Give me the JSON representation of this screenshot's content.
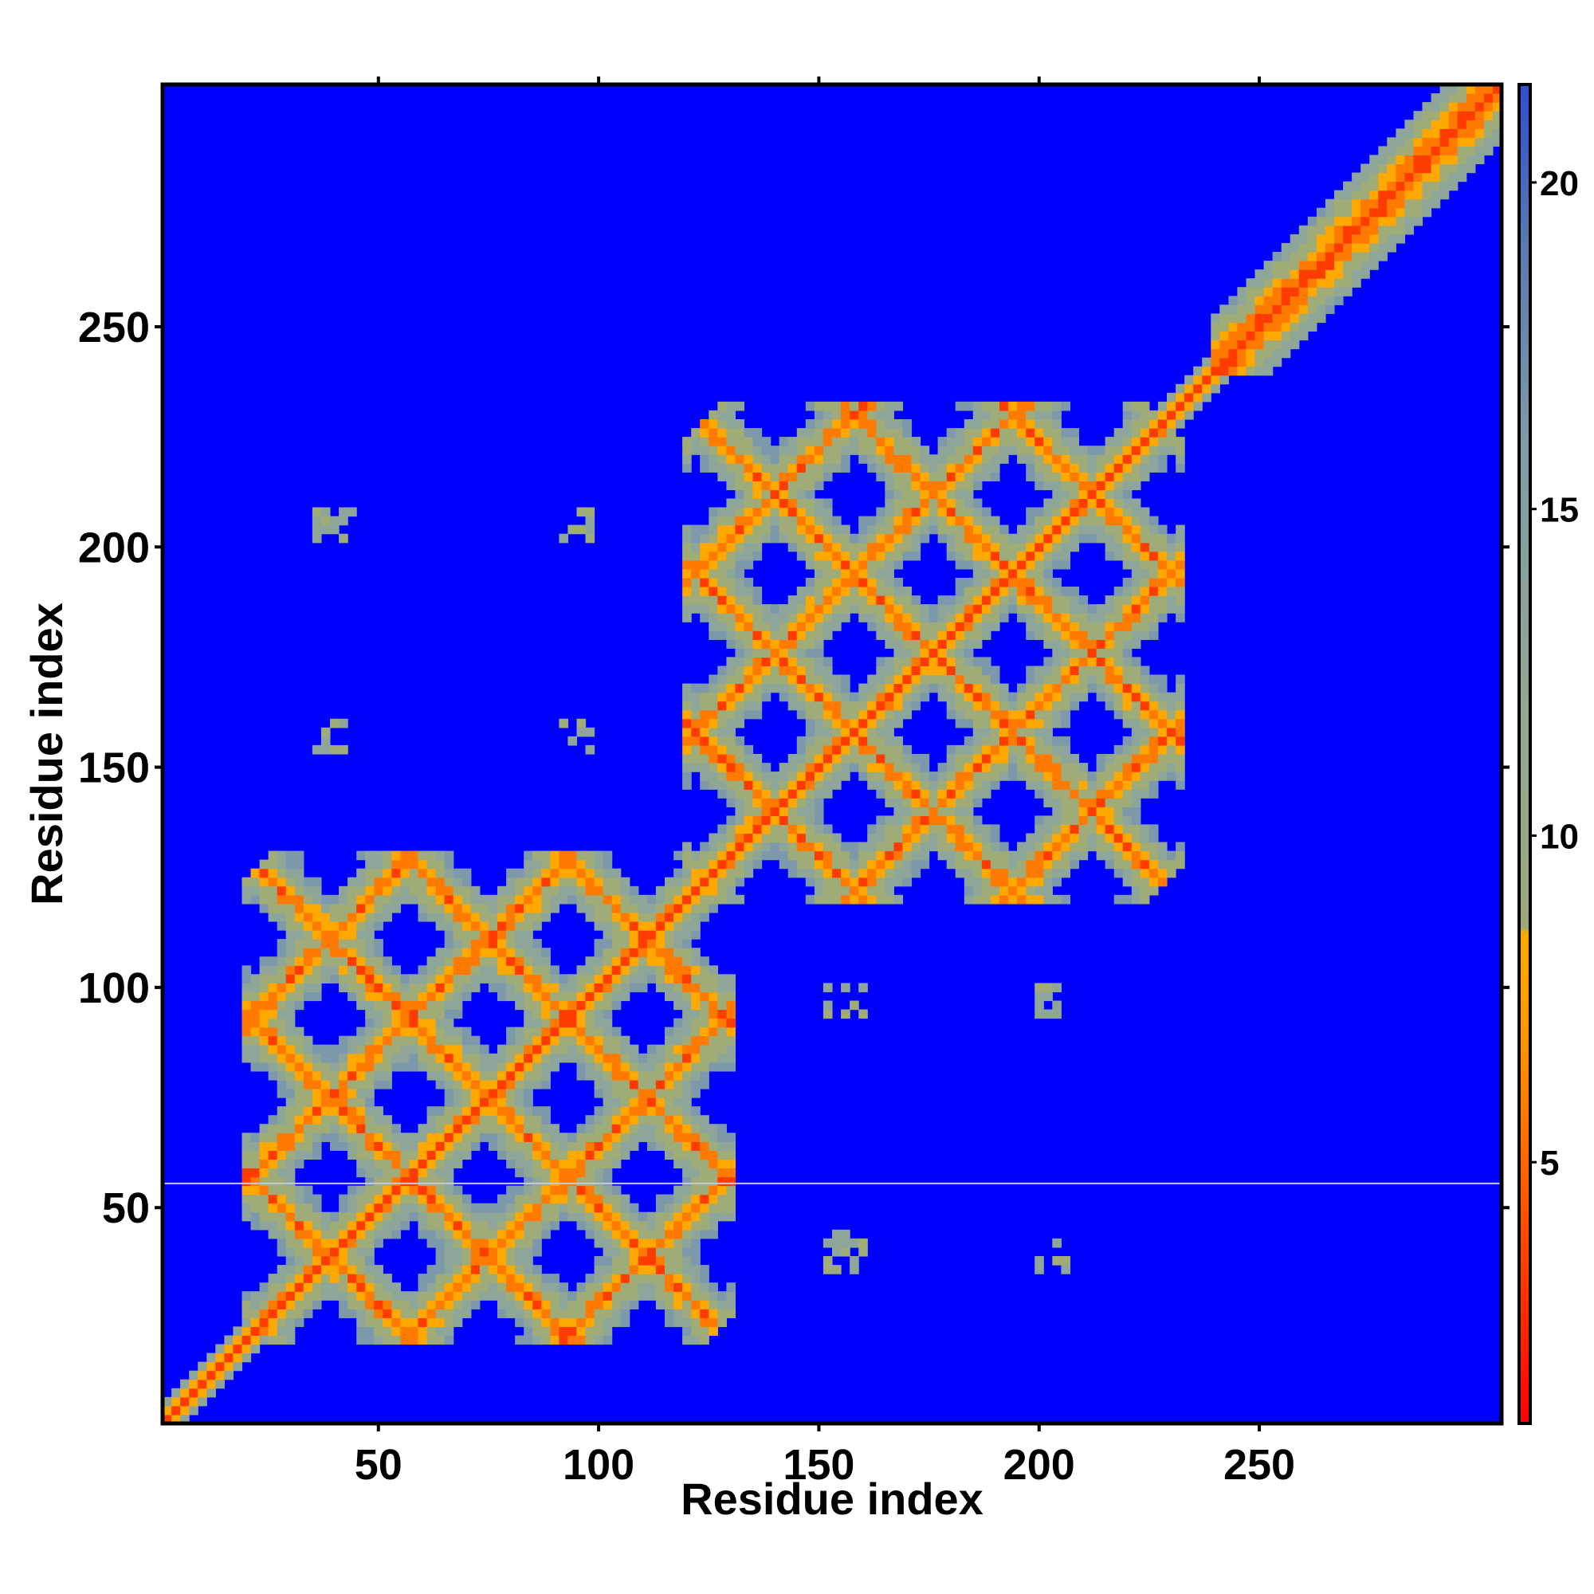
{
  "chart_data": {
    "type": "heatmap",
    "title": "",
    "xlabel": "Residue index",
    "ylabel": "Residue index",
    "xlim": [
      1,
      305
    ],
    "ylim": [
      1,
      305
    ],
    "xticks": [
      50,
      100,
      150,
      200,
      250
    ],
    "yticks": [
      50,
      100,
      150,
      200,
      250
    ],
    "colorbar": {
      "ticks": [
        5,
        10,
        15,
        20
      ],
      "range": [
        1,
        21.5
      ],
      "stops": [
        {
          "value": 1,
          "color": "#ff0000"
        },
        {
          "value": 3,
          "color": "#ff3300"
        },
        {
          "value": 5,
          "color": "#ff6600"
        },
        {
          "value": 7,
          "color": "#ff9900"
        },
        {
          "value": 8.5,
          "color": "#ffaa00"
        },
        {
          "value": 8.6,
          "color": "#9aa87a"
        },
        {
          "value": 12,
          "color": "#8fa890"
        },
        {
          "value": 16,
          "color": "#7f9aa8"
        },
        {
          "value": 19,
          "color": "#5a7ab0"
        },
        {
          "value": 21.5,
          "color": "#2e4fd0"
        }
      ]
    },
    "background_color": "#0000ff",
    "description_values": {
      "diagonal_distance": 3,
      "blocks": [
        {
          "range": [
            20,
            130
          ],
          "center": [
            75,
            75
          ]
        },
        {
          "range": [
            120,
            232
          ],
          "center": [
            176,
            176
          ]
        }
      ],
      "tail_segment": [
        240,
        305
      ],
      "contact_islands": [
        {
          "x": 40,
          "y": 205
        },
        {
          "x": 95,
          "y": 205
        },
        {
          "x": 40,
          "y": 157
        },
        {
          "x": 95,
          "y": 157
        },
        {
          "x": 156,
          "y": 97
        },
        {
          "x": 203,
          "y": 97
        },
        {
          "x": 156,
          "y": 40
        },
        {
          "x": 203,
          "y": 40
        }
      ]
    }
  }
}
